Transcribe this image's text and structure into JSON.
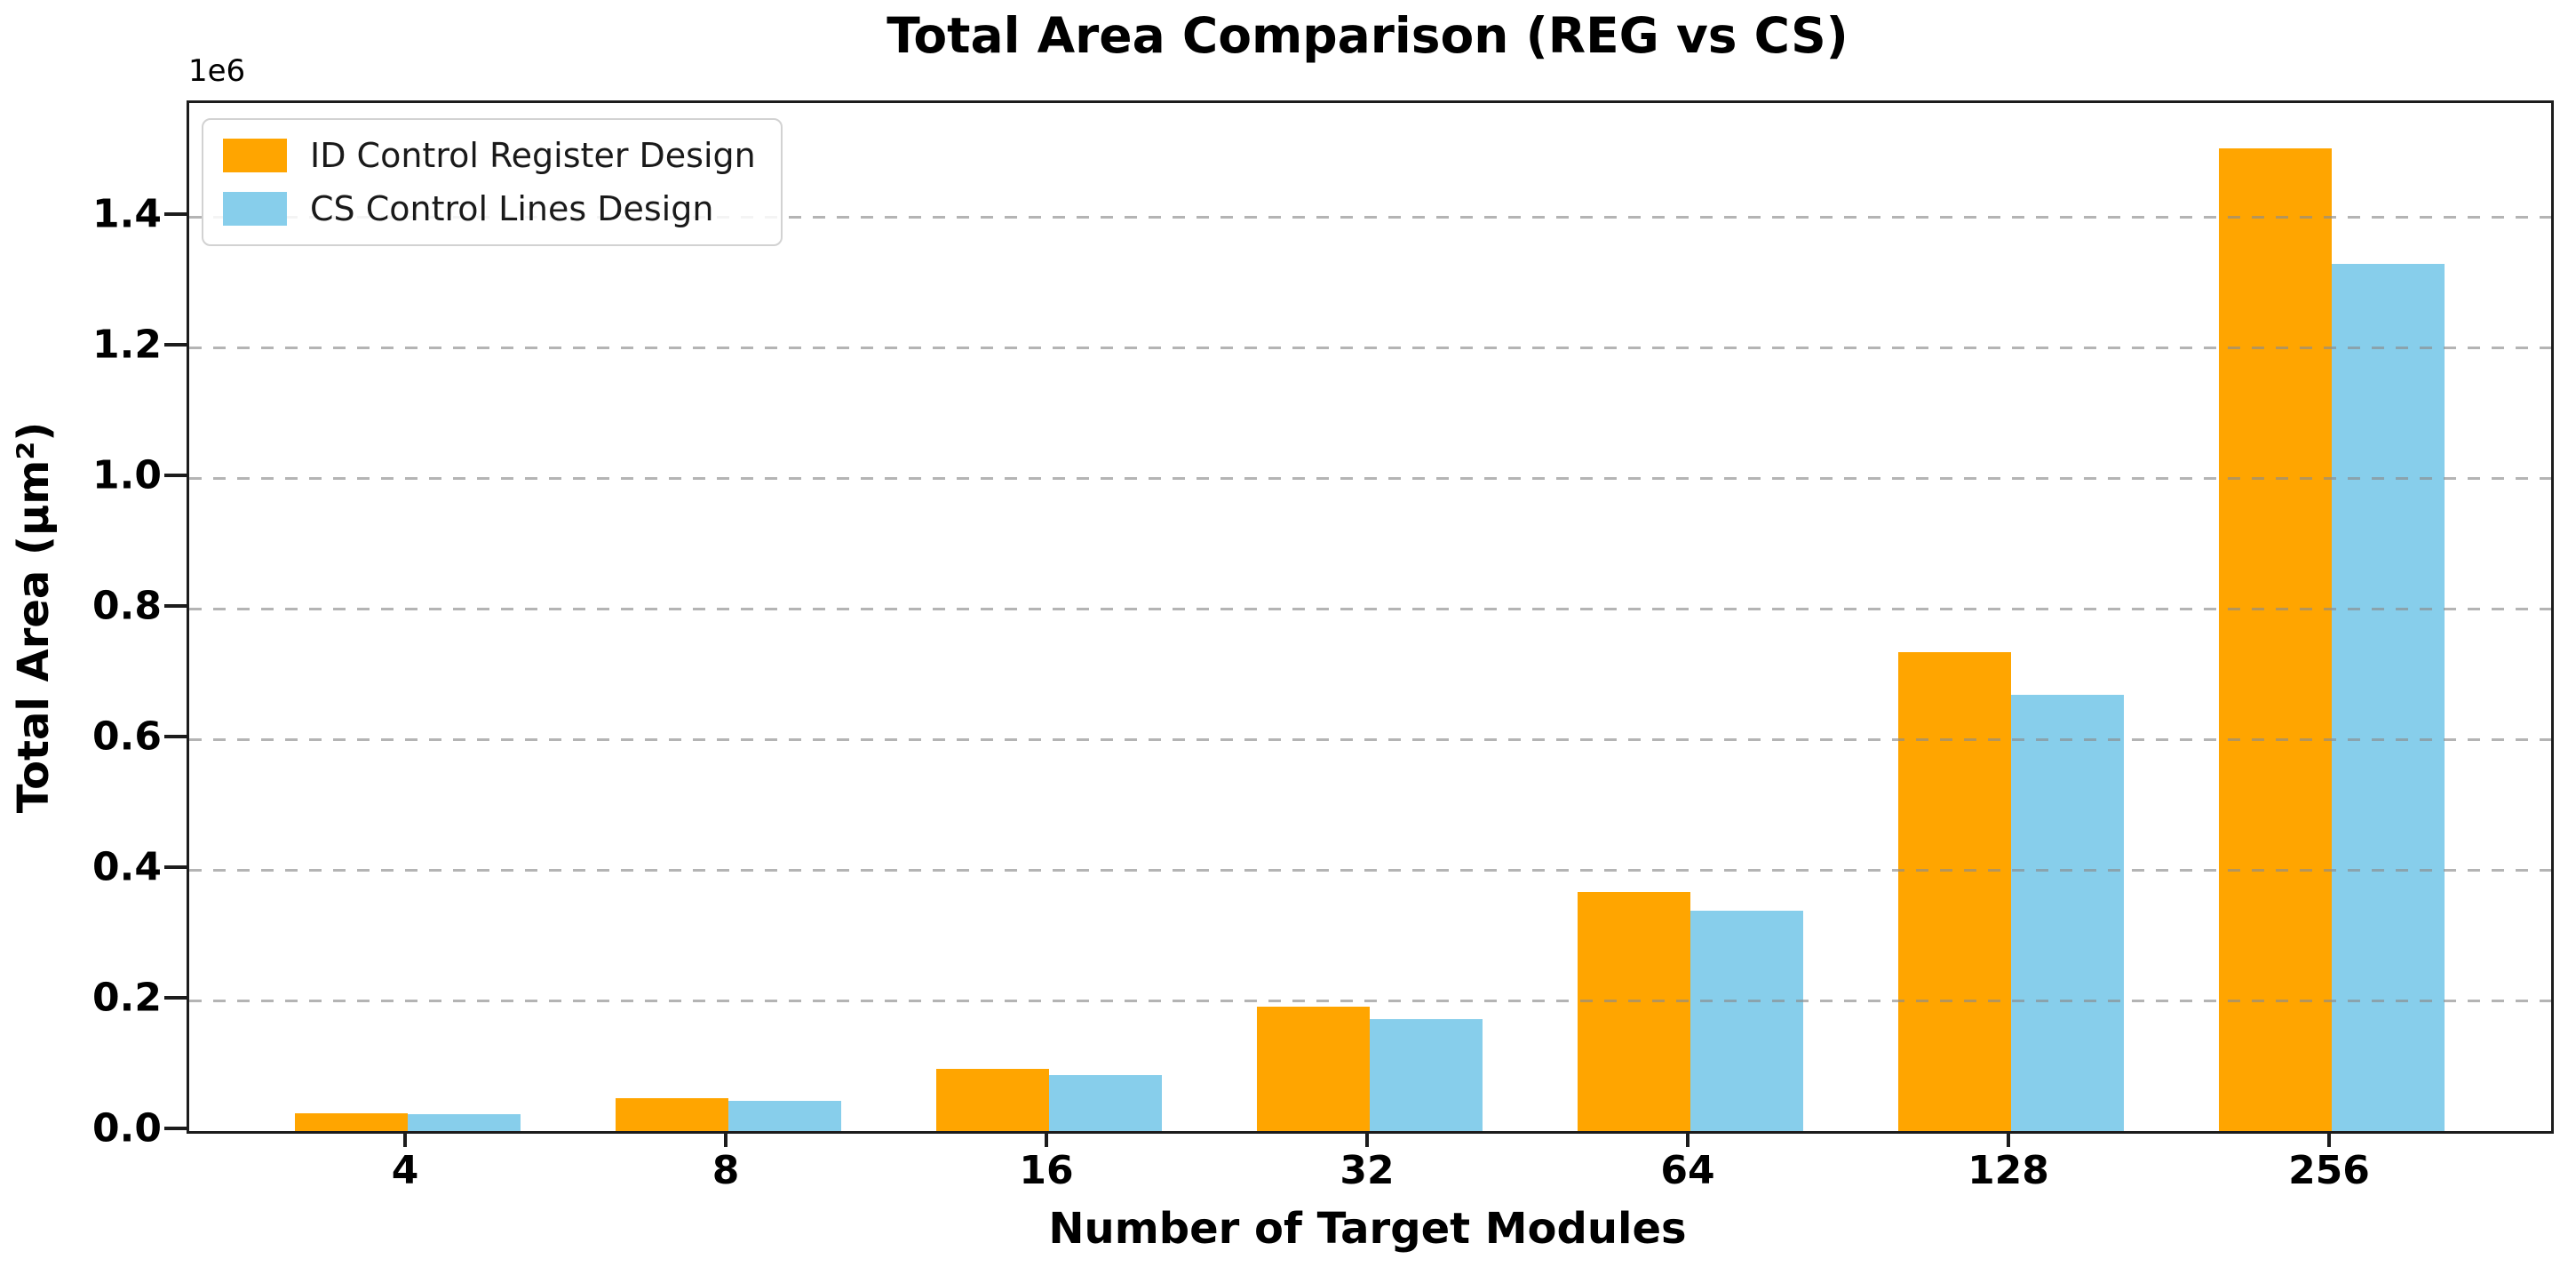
{
  "title": "Total Area Comparison (REG vs CS)",
  "axis": {
    "offset_text": "1e6",
    "xlabel": "Number of Target Modules",
    "ylabel": "Total Area (μm²)"
  },
  "legend": {
    "position": "upper-left",
    "entries": [
      {
        "label": "ID Control Register Design",
        "color": "#FFA500"
      },
      {
        "label": "CS Control Lines Design",
        "color": "#87CEEB"
      }
    ]
  },
  "chart_data": {
    "type": "bar",
    "title": "Total Area Comparison (REG vs CS)",
    "xlabel": "Number of Target Modules",
    "ylabel": "Total Area (μm²)",
    "y_unit_multiplier_label": "1e6",
    "categories": [
      "4",
      "8",
      "16",
      "32",
      "64",
      "128",
      "256"
    ],
    "series": [
      {
        "name": "ID Control Register Design",
        "color": "#FFA500",
        "values": [
          27000,
          51000,
          95000,
          190000,
          366000,
          733000,
          1505000
        ]
      },
      {
        "name": "CS Control Lines Design",
        "color": "#87CEEB",
        "values": [
          26000,
          46000,
          86000,
          172000,
          338000,
          668000,
          1328000
        ]
      }
    ],
    "ylim": [
      0,
      1574000
    ],
    "y_ticks": [
      0,
      200000,
      400000,
      600000,
      800000,
      1000000,
      1200000,
      1400000
    ],
    "y_tick_labels": [
      "0.0",
      "0.2",
      "0.4",
      "0.6",
      "0.8",
      "1.0",
      "1.2",
      "1.4"
    ],
    "grid": "horizontal-dashed, drawn above bars",
    "legend_position": "upper-left"
  }
}
